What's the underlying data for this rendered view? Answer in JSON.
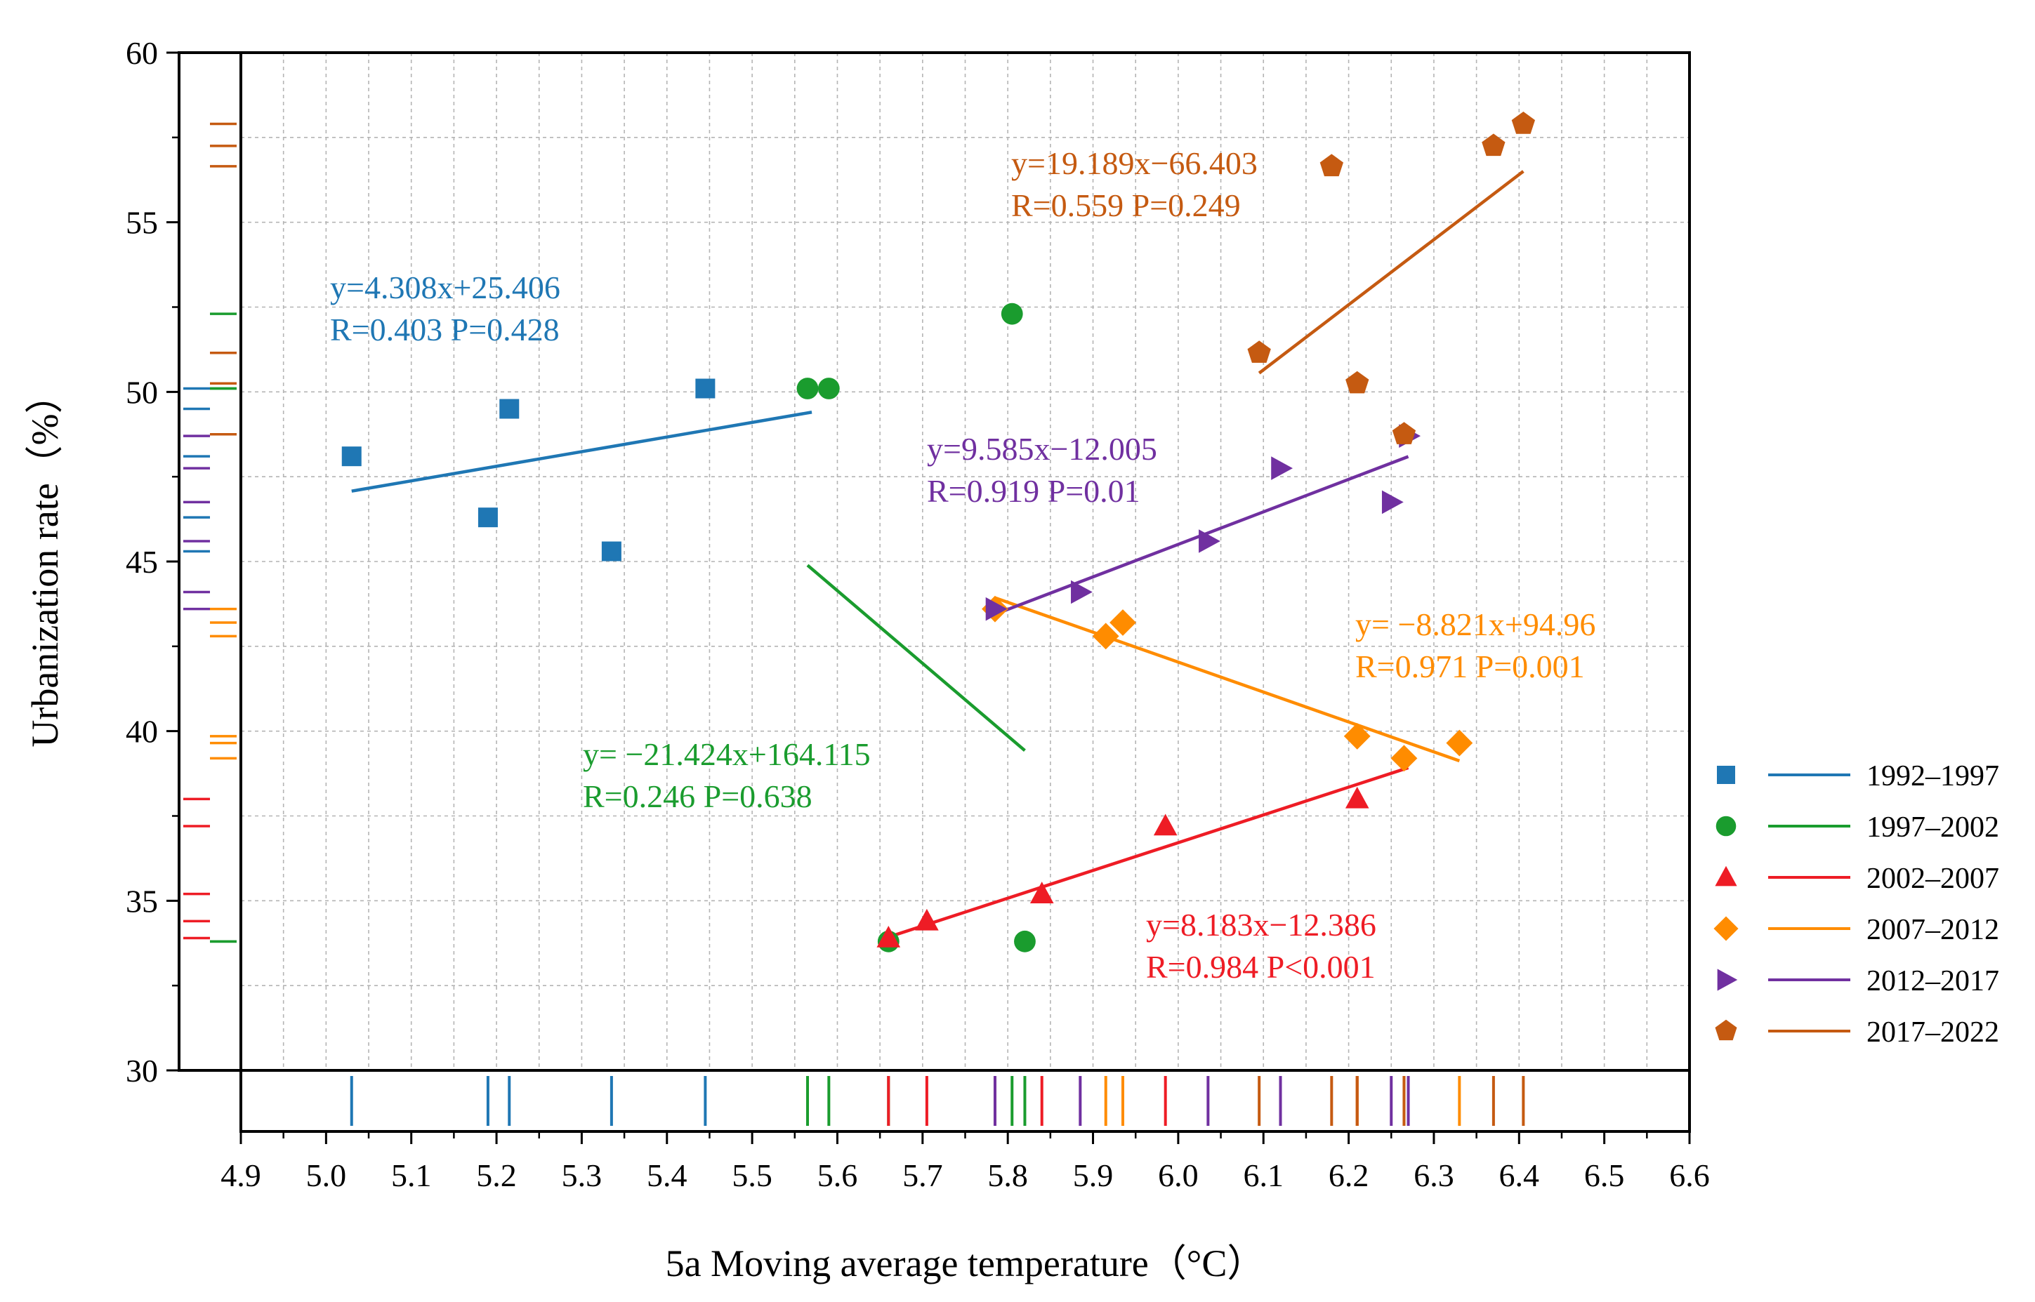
{
  "chart_data": {
    "type": "scatter",
    "title": "",
    "xlabel": "5a Moving average temperature（°C）",
    "ylabel": "Urbanization rate（%）",
    "xlim": [
      4.9,
      6.6
    ],
    "ylim": [
      30,
      60
    ],
    "x_ticks": [
      "4.9",
      "5.0",
      "5.1",
      "5.2",
      "5.3",
      "5.4",
      "5.5",
      "5.6",
      "5.7",
      "5.8",
      "5.9",
      "6.0",
      "6.1",
      "6.2",
      "6.3",
      "6.4",
      "6.5",
      "6.6"
    ],
    "y_ticks": [
      "30",
      "35",
      "40",
      "45",
      "50",
      "55",
      "60"
    ],
    "grid": true,
    "legend_position": "right",
    "series": [
      {
        "name": "1992–1997",
        "color": "#1f77b4",
        "marker": "square",
        "points": [
          [
            5.03,
            48.1
          ],
          [
            5.19,
            46.3
          ],
          [
            5.215,
            49.5
          ],
          [
            5.335,
            45.3
          ],
          [
            5.445,
            50.1
          ]
        ],
        "fit": {
          "slope": 4.308,
          "intercept": 25.406,
          "x_range": [
            5.03,
            5.57
          ]
        },
        "equation": "y=4.308x+25.406",
        "stats": "R=0.403  P=0.428"
      },
      {
        "name": "1997–2002",
        "color": "#1a9c2e",
        "marker": "circle",
        "points": [
          [
            5.565,
            50.1
          ],
          [
            5.59,
            50.1
          ],
          [
            5.805,
            52.3
          ],
          [
            5.66,
            33.8
          ],
          [
            5.82,
            33.8
          ]
        ],
        "fit": {
          "slope": -21.424,
          "intercept": 164.115,
          "x_range": [
            5.565,
            5.82
          ]
        },
        "equation": "y= −21.424x+164.115",
        "stats": "R=0.246  P=0.638"
      },
      {
        "name": "2002–2007",
        "color": "#ee1c25",
        "marker": "triangle",
        "points": [
          [
            5.66,
            33.9
          ],
          [
            5.705,
            34.4
          ],
          [
            5.84,
            35.2
          ],
          [
            5.985,
            37.2
          ],
          [
            6.21,
            38.0
          ]
        ],
        "fit": {
          "slope": 8.183,
          "intercept": -12.386,
          "x_range": [
            5.66,
            6.27
          ]
        },
        "equation": "y=8.183x−12.386",
        "stats": "R=0.984  P<0.001"
      },
      {
        "name": "2007–2012",
        "color": "#ff8c00",
        "marker": "diamond",
        "points": [
          [
            5.785,
            43.6
          ],
          [
            5.915,
            42.8
          ],
          [
            5.935,
            43.2
          ],
          [
            6.21,
            39.85
          ],
          [
            6.265,
            39.2
          ],
          [
            6.33,
            39.65
          ]
        ],
        "fit": {
          "slope": -8.821,
          "intercept": 94.96,
          "x_range": [
            5.785,
            6.33
          ]
        },
        "equation": "y= −8.821x+94.96",
        "stats": "R=0.971  P=0.001"
      },
      {
        "name": "2012–2017",
        "color": "#7030a0",
        "marker": "triangle-right",
        "points": [
          [
            5.785,
            43.6
          ],
          [
            5.885,
            44.1
          ],
          [
            6.035,
            45.6
          ],
          [
            6.12,
            47.75
          ],
          [
            6.25,
            46.75
          ],
          [
            6.27,
            48.7
          ]
        ],
        "fit": {
          "slope": 9.585,
          "intercept": -12.005,
          "x_range": [
            5.785,
            6.27
          ]
        },
        "equation": "y=9.585x−12.005",
        "stats": "R=0.919  P=0.01"
      },
      {
        "name": "2017–2022",
        "color": "#c55a11",
        "marker": "pentagon",
        "points": [
          [
            6.095,
            51.15
          ],
          [
            6.18,
            56.65
          ],
          [
            6.21,
            50.25
          ],
          [
            6.265,
            48.75
          ],
          [
            6.37,
            57.25
          ],
          [
            6.405,
            57.9
          ]
        ],
        "fit": {
          "slope": 19.189,
          "intercept": -66.403,
          "x_range": [
            6.095,
            6.405
          ]
        },
        "equation": "y=19.189x−66.403",
        "stats": "R=0.559  P=0.249"
      }
    ]
  }
}
